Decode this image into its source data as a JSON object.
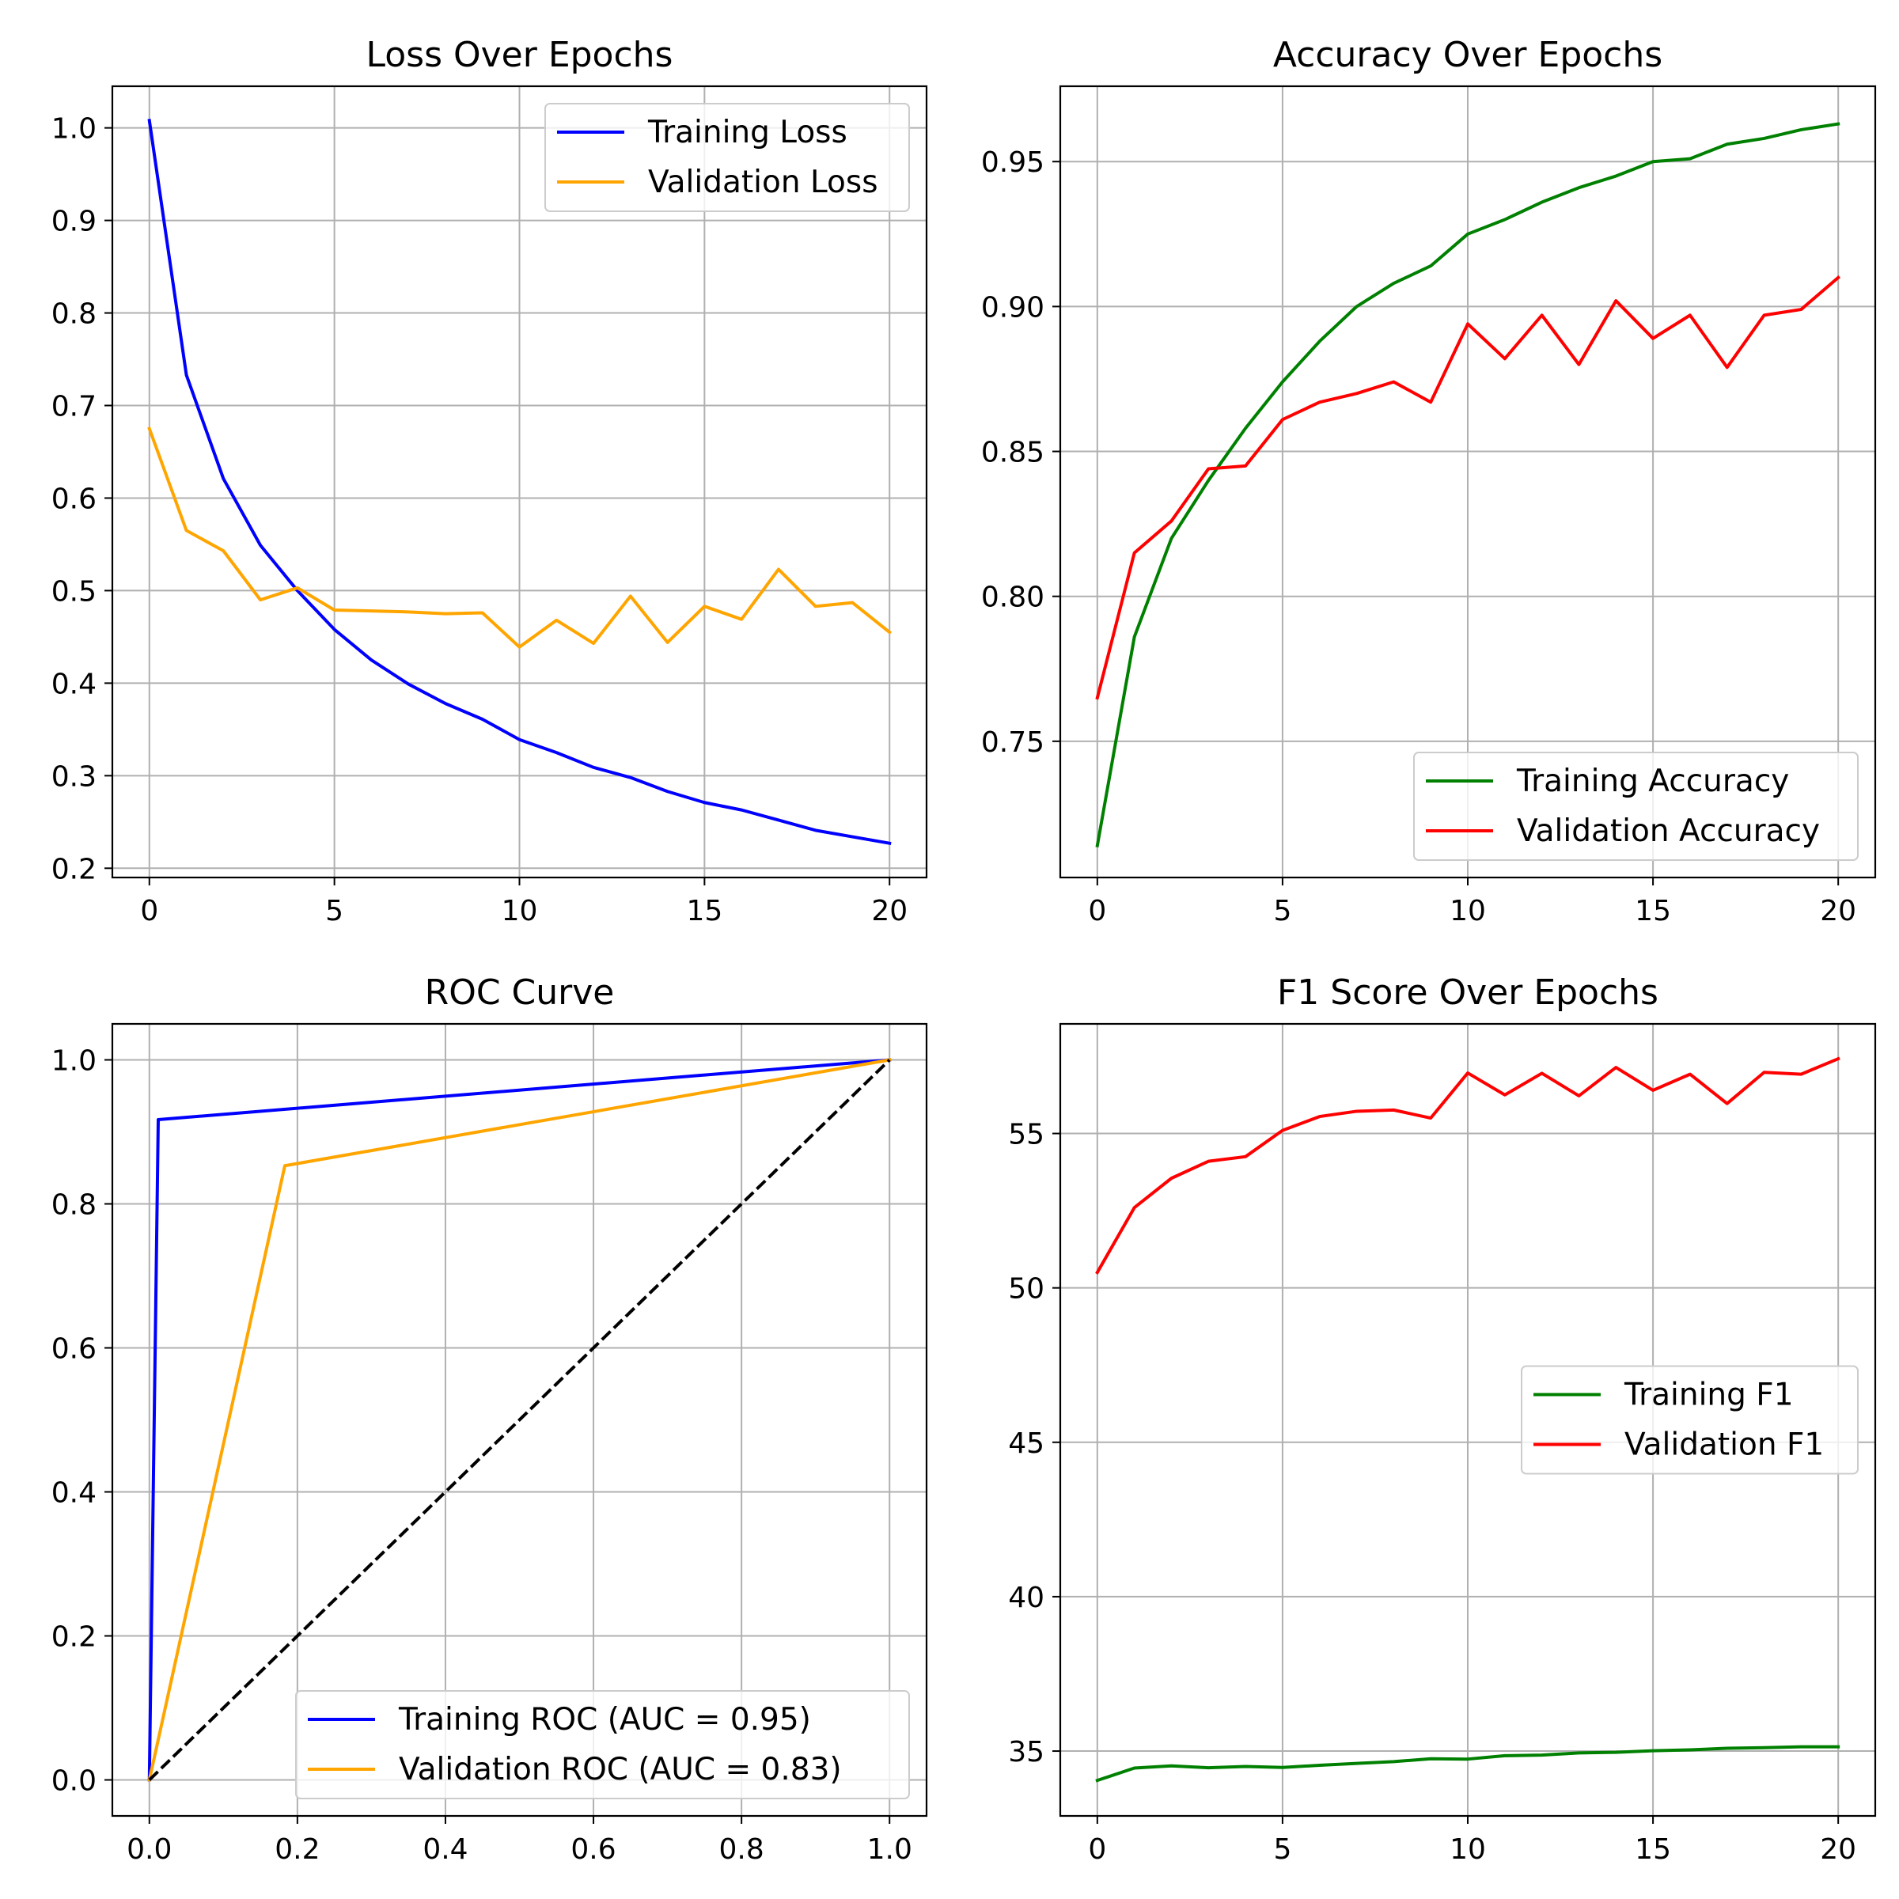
{
  "colors": {
    "blue": "#0000ff",
    "orange": "#ffa500",
    "green": "#008000",
    "red": "#ff0000",
    "black": "#000000"
  },
  "chart_data": [
    {
      "id": "loss",
      "type": "line",
      "title": "Loss Over Epochs",
      "xlim": [
        -1,
        21
      ],
      "ylim": [
        0.19,
        1.045
      ],
      "xticks": [
        0,
        5,
        10,
        15,
        20
      ],
      "xtick_labels": [
        "0",
        "5",
        "10",
        "15",
        "20"
      ],
      "yticks": [
        0.2,
        0.3,
        0.4,
        0.5,
        0.6,
        0.7,
        0.8,
        0.9,
        1.0
      ],
      "ytick_labels": [
        "0.2",
        "0.3",
        "0.4",
        "0.5",
        "0.6",
        "0.7",
        "0.8",
        "0.9",
        "1.0"
      ],
      "grid": true,
      "legend_position": "upper right",
      "x": [
        0,
        1,
        2,
        3,
        4,
        5,
        6,
        7,
        8,
        9,
        10,
        11,
        12,
        13,
        14,
        15,
        16,
        17,
        18,
        19,
        20
      ],
      "series": [
        {
          "name": "Training Loss",
          "color": "blue",
          "values": [
            1.008,
            0.733,
            0.621,
            0.549,
            0.5,
            0.458,
            0.425,
            0.399,
            0.378,
            0.361,
            0.339,
            0.325,
            0.309,
            0.298,
            0.283,
            0.271,
            0.263,
            0.252,
            0.241,
            0.234,
            0.227
          ]
        },
        {
          "name": "Validation Loss",
          "color": "orange",
          "values": [
            0.675,
            0.565,
            0.543,
            0.49,
            0.503,
            0.479,
            0.478,
            0.477,
            0.475,
            0.476,
            0.439,
            0.468,
            0.443,
            0.494,
            0.444,
            0.483,
            0.469,
            0.523,
            0.483,
            0.487,
            0.455
          ]
        }
      ]
    },
    {
      "id": "accuracy",
      "type": "line",
      "title": "Accuracy Over Epochs",
      "xlim": [
        -1,
        21
      ],
      "ylim": [
        0.703,
        0.976
      ],
      "xticks": [
        0,
        5,
        10,
        15,
        20
      ],
      "xtick_labels": [
        "0",
        "5",
        "10",
        "15",
        "20"
      ],
      "yticks": [
        0.75,
        0.8,
        0.85,
        0.9,
        0.95
      ],
      "ytick_labels": [
        "0.75",
        "0.80",
        "0.85",
        "0.90",
        "0.95"
      ],
      "grid": true,
      "legend_position": "lower right",
      "x": [
        0,
        1,
        2,
        3,
        4,
        5,
        6,
        7,
        8,
        9,
        10,
        11,
        12,
        13,
        14,
        15,
        16,
        17,
        18,
        19,
        20
      ],
      "series": [
        {
          "name": "Training Accuracy",
          "color": "green",
          "values": [
            0.714,
            0.786,
            0.82,
            0.84,
            0.858,
            0.874,
            0.888,
            0.9,
            0.908,
            0.914,
            0.925,
            0.93,
            0.936,
            0.941,
            0.945,
            0.95,
            0.951,
            0.956,
            0.958,
            0.961,
            0.963
          ]
        },
        {
          "name": "Validation Accuracy",
          "color": "red",
          "values": [
            0.765,
            0.815,
            0.826,
            0.844,
            0.845,
            0.861,
            0.867,
            0.87,
            0.874,
            0.867,
            0.894,
            0.882,
            0.897,
            0.88,
            0.902,
            0.889,
            0.897,
            0.879,
            0.897,
            0.899,
            0.91
          ]
        }
      ]
    },
    {
      "id": "roc",
      "type": "line",
      "title": "ROC Curve",
      "xlim": [
        -0.05,
        1.05
      ],
      "ylim": [
        -0.05,
        1.05
      ],
      "xticks": [
        0,
        0.2,
        0.4,
        0.6,
        0.8,
        1.0
      ],
      "xtick_labels": [
        "0.0",
        "0.2",
        "0.4",
        "0.6",
        "0.8",
        "1.0"
      ],
      "yticks": [
        0,
        0.2,
        0.4,
        0.6,
        0.8,
        1.0
      ],
      "ytick_labels": [
        "0.0",
        "0.2",
        "0.4",
        "0.6",
        "0.8",
        "1.0"
      ],
      "grid": true,
      "legend_position": "lower right",
      "series": [
        {
          "name": "Training ROC (AUC = 0.95)",
          "color": "blue",
          "x": [
            0,
            0.012,
            1.0
          ],
          "values": [
            0,
            0.917,
            1.0
          ]
        },
        {
          "name": "Validation ROC (AUC = 0.83)",
          "color": "orange",
          "x": [
            0,
            0.183,
            1.0
          ],
          "values": [
            0,
            0.853,
            1.0
          ]
        },
        {
          "name": "",
          "color": "black",
          "dashed": true,
          "legend": false,
          "x": [
            0,
            1
          ],
          "values": [
            0,
            1
          ]
        }
      ]
    },
    {
      "id": "f1",
      "type": "line",
      "title": "F1 Score Over Epochs",
      "xlim": [
        -1,
        21
      ],
      "ylim": [
        32.9,
        58.55
      ],
      "xticks": [
        0,
        5,
        10,
        15,
        20
      ],
      "xtick_labels": [
        "0",
        "5",
        "10",
        "15",
        "20"
      ],
      "yticks": [
        35,
        40,
        45,
        50,
        55
      ],
      "ytick_labels": [
        "35",
        "40",
        "45",
        "50",
        "55"
      ],
      "grid": true,
      "legend_position": "center right",
      "x": [
        0,
        1,
        2,
        3,
        4,
        5,
        6,
        7,
        8,
        9,
        10,
        11,
        12,
        13,
        14,
        15,
        16,
        17,
        18,
        19,
        20
      ],
      "series": [
        {
          "name": "Training F1",
          "color": "green",
          "values": [
            34.05,
            34.45,
            34.52,
            34.46,
            34.5,
            34.47,
            34.54,
            34.6,
            34.66,
            34.75,
            34.74,
            34.85,
            34.87,
            34.94,
            34.96,
            35.01,
            35.04,
            35.09,
            35.11,
            35.14,
            35.14
          ]
        },
        {
          "name": "Validation F1",
          "color": "red",
          "values": [
            50.5,
            52.6,
            53.55,
            54.1,
            54.25,
            55.1,
            55.55,
            55.72,
            55.76,
            55.5,
            56.96,
            56.25,
            56.95,
            56.22,
            57.14,
            56.4,
            56.92,
            55.97,
            56.98,
            56.92,
            57.42
          ]
        }
      ]
    }
  ]
}
